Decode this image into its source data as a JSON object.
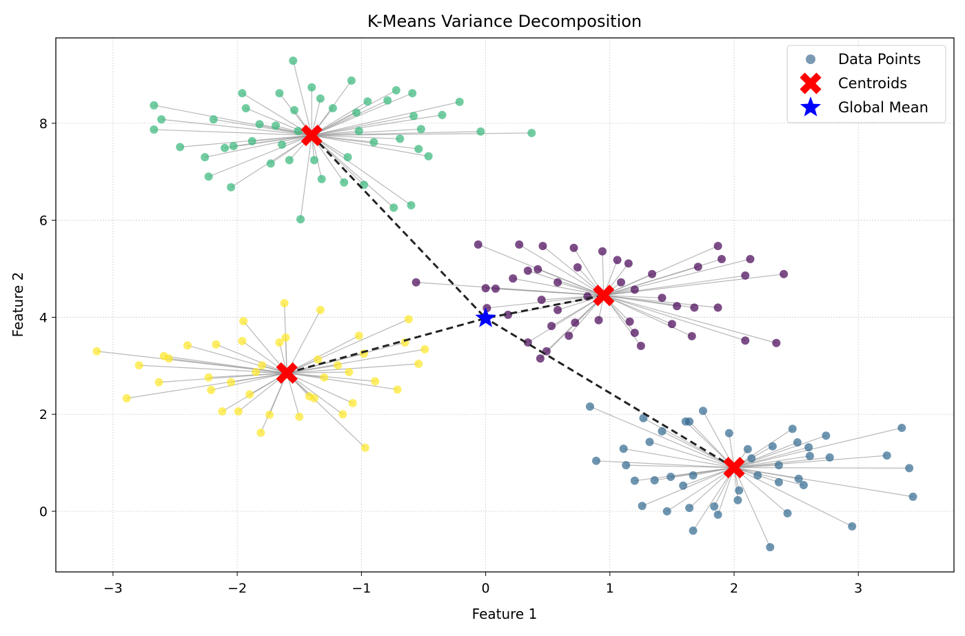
{
  "chart_data": {
    "type": "scatter",
    "title": "K-Means Variance Decomposition",
    "xlabel": "Feature 1",
    "ylabel": "Feature 2",
    "xlim": [
      -3.46,
      3.77
    ],
    "ylim": [
      -1.25,
      9.76
    ],
    "xticks": [
      -3,
      -2,
      -1,
      0,
      1,
      2,
      3
    ],
    "xtick_labels": [
      "−3",
      "−2",
      "−1",
      "0",
      "1",
      "2",
      "3"
    ],
    "yticks": [
      0,
      2,
      4,
      6,
      8
    ],
    "ytick_labels": [
      "0",
      "2",
      "4",
      "6",
      "8"
    ],
    "grid": true,
    "legend_position": "top-right",
    "legend": [
      {
        "label": "Data Points",
        "marker": "circle",
        "color": "#5a7fa0"
      },
      {
        "label": "Centroids",
        "marker": "x",
        "color": "#ff0000"
      },
      {
        "label": "Global Mean",
        "marker": "star",
        "color": "#0000ff"
      }
    ],
    "line_color": "#999999",
    "mean_line_color": "#222222",
    "clusters": [
      {
        "color": "#35b779",
        "centroid": [
          -1.4,
          7.75
        ],
        "points": [
          [
            -1.55,
            9.29
          ],
          [
            -2.67,
            8.37
          ],
          [
            -1.96,
            8.62
          ],
          [
            -1.66,
            8.62
          ],
          [
            -1.4,
            8.74
          ],
          [
            -1.08,
            8.88
          ],
          [
            -1.33,
            8.51
          ],
          [
            -1.93,
            8.31
          ],
          [
            -2.61,
            8.08
          ],
          [
            -2.67,
            7.87
          ],
          [
            -2.19,
            8.08
          ],
          [
            -2.46,
            7.51
          ],
          [
            -2.26,
            7.3
          ],
          [
            -2.23,
            6.9
          ],
          [
            -2.05,
            6.68
          ],
          [
            -2.1,
            7.49
          ],
          [
            -1.73,
            7.17
          ],
          [
            -1.49,
            6.02
          ],
          [
            -1.32,
            6.85
          ],
          [
            -1.14,
            6.78
          ],
          [
            -0.98,
            6.73
          ],
          [
            -0.74,
            6.26
          ],
          [
            -0.6,
            6.31
          ],
          [
            -0.9,
            7.61
          ],
          [
            -0.69,
            7.68
          ],
          [
            -0.54,
            7.47
          ],
          [
            -0.46,
            7.32
          ],
          [
            -0.52,
            7.88
          ],
          [
            -0.58,
            8.15
          ],
          [
            -0.35,
            8.17
          ],
          [
            -0.21,
            8.44
          ],
          [
            -0.04,
            7.83
          ],
          [
            0.37,
            7.8
          ],
          [
            -0.59,
            8.62
          ],
          [
            -0.72,
            8.68
          ],
          [
            -0.79,
            8.47
          ],
          [
            -0.95,
            8.45
          ],
          [
            -1.04,
            8.22
          ],
          [
            -1.23,
            8.31
          ],
          [
            -1.11,
            7.3
          ],
          [
            -1.38,
            7.24
          ],
          [
            -1.58,
            7.24
          ],
          [
            -1.82,
            7.98
          ],
          [
            -1.69,
            7.95
          ],
          [
            -1.88,
            7.63
          ],
          [
            -1.64,
            7.56
          ],
          [
            -1.02,
            7.84
          ],
          [
            -2.03,
            7.53
          ],
          [
            -1.54,
            8.27
          ],
          [
            -1.51,
            7.84
          ]
        ]
      },
      {
        "color": "#440154",
        "centroid": [
          0.95,
          4.45
        ],
        "points": [
          [
            -0.06,
            5.5
          ],
          [
            -0.56,
            4.72
          ],
          [
            0.27,
            5.5
          ],
          [
            0.46,
            5.47
          ],
          [
            0.71,
            5.43
          ],
          [
            0.94,
            5.36
          ],
          [
            1.06,
            5.18
          ],
          [
            1.15,
            5.11
          ],
          [
            1.87,
            5.47
          ],
          [
            1.9,
            5.2
          ],
          [
            2.13,
            5.2
          ],
          [
            1.71,
            5.04
          ],
          [
            2.09,
            4.86
          ],
          [
            2.4,
            4.89
          ],
          [
            1.34,
            4.89
          ],
          [
            1.42,
            4.4
          ],
          [
            1.54,
            4.23
          ],
          [
            1.68,
            4.2
          ],
          [
            1.87,
            4.2
          ],
          [
            1.5,
            3.86
          ],
          [
            1.66,
            3.61
          ],
          [
            2.09,
            3.52
          ],
          [
            2.34,
            3.47
          ],
          [
            1.25,
            3.41
          ],
          [
            1.2,
            3.68
          ],
          [
            1.16,
            3.91
          ],
          [
            0.91,
            3.94
          ],
          [
            0.72,
            3.89
          ],
          [
            0.67,
            3.62
          ],
          [
            0.53,
            3.82
          ],
          [
            0.34,
            3.48
          ],
          [
            0.49,
            3.3
          ],
          [
            0.44,
            3.15
          ],
          [
            0.18,
            4.05
          ],
          [
            0.01,
            4.19
          ],
          [
            0.0,
            4.6
          ],
          [
            0.08,
            4.59
          ],
          [
            0.22,
            4.8
          ],
          [
            0.34,
            4.96
          ],
          [
            0.42,
            4.99
          ],
          [
            0.58,
            4.72
          ],
          [
            0.45,
            4.36
          ],
          [
            0.58,
            4.15
          ],
          [
            0.74,
            5.03
          ],
          [
            1.09,
            4.72
          ],
          [
            1.2,
            4.57
          ],
          [
            0.82,
            4.43
          ]
        ]
      },
      {
        "color": "#fde725",
        "centroid": [
          -1.6,
          2.85
        ],
        "points": [
          [
            -3.13,
            3.3
          ],
          [
            -2.89,
            2.33
          ],
          [
            -2.79,
            3.01
          ],
          [
            -2.63,
            2.66
          ],
          [
            -2.59,
            3.2
          ],
          [
            -2.55,
            3.15
          ],
          [
            -2.4,
            3.42
          ],
          [
            -2.23,
            2.76
          ],
          [
            -2.21,
            2.5
          ],
          [
            -2.17,
            3.44
          ],
          [
            -2.12,
            2.06
          ],
          [
            -1.99,
            2.06
          ],
          [
            -1.96,
            3.51
          ],
          [
            -1.95,
            3.92
          ],
          [
            -1.9,
            2.41
          ],
          [
            -1.81,
            1.62
          ],
          [
            -1.74,
            1.99
          ],
          [
            -1.66,
            3.48
          ],
          [
            -1.62,
            4.29
          ],
          [
            -1.61,
            3.58
          ],
          [
            -1.5,
            1.95
          ],
          [
            -1.38,
            2.33
          ],
          [
            -1.33,
            4.15
          ],
          [
            -1.15,
            2.0
          ],
          [
            -1.07,
            2.23
          ],
          [
            -1.02,
            3.62
          ],
          [
            -0.97,
            1.31
          ],
          [
            -0.89,
            2.68
          ],
          [
            -0.71,
            2.51
          ],
          [
            -0.65,
            3.48
          ],
          [
            -0.62,
            3.96
          ],
          [
            -0.54,
            3.04
          ],
          [
            -0.49,
            3.34
          ],
          [
            -0.98,
            3.25
          ],
          [
            -1.1,
            2.87
          ],
          [
            -1.19,
            3.01
          ],
          [
            -2.05,
            2.66
          ],
          [
            -1.85,
            2.87
          ],
          [
            -1.8,
            3.01
          ],
          [
            -1.35,
            3.13
          ],
          [
            -1.3,
            2.76
          ],
          [
            -1.42,
            2.37
          ]
        ]
      },
      {
        "color": "#31688e",
        "centroid": [
          2.0,
          0.9
        ],
        "points": [
          [
            0.84,
            2.16
          ],
          [
            0.89,
            1.04
          ],
          [
            1.11,
            1.29
          ],
          [
            1.13,
            0.95
          ],
          [
            1.2,
            0.63
          ],
          [
            1.26,
            0.11
          ],
          [
            1.27,
            1.92
          ],
          [
            1.32,
            1.43
          ],
          [
            1.42,
            1.65
          ],
          [
            1.46,
            0.0
          ],
          [
            1.49,
            0.71
          ],
          [
            1.61,
            1.85
          ],
          [
            1.64,
            1.85
          ],
          [
            1.67,
            -0.4
          ],
          [
            1.75,
            2.07
          ],
          [
            1.84,
            0.1
          ],
          [
            1.87,
            -0.07
          ],
          [
            1.96,
            1.61
          ],
          [
            2.03,
            0.23
          ],
          [
            2.11,
            1.28
          ],
          [
            2.29,
            -0.74
          ],
          [
            2.31,
            1.34
          ],
          [
            2.43,
            -0.04
          ],
          [
            2.47,
            1.7
          ],
          [
            2.51,
            1.42
          ],
          [
            2.56,
            0.54
          ],
          [
            2.6,
            1.32
          ],
          [
            2.74,
            1.56
          ],
          [
            2.77,
            1.11
          ],
          [
            2.95,
            -0.31
          ],
          [
            3.23,
            1.15
          ],
          [
            3.35,
            1.72
          ],
          [
            3.41,
            0.89
          ],
          [
            3.44,
            0.3
          ],
          [
            2.36,
            0.6
          ],
          [
            2.52,
            0.67
          ],
          [
            2.19,
            0.74
          ],
          [
            1.59,
            0.53
          ],
          [
            1.64,
            0.07
          ],
          [
            1.67,
            0.74
          ],
          [
            2.04,
            0.43
          ],
          [
            2.14,
            1.09
          ],
          [
            2.36,
            0.95
          ],
          [
            2.61,
            1.14
          ],
          [
            1.36,
            0.64
          ]
        ]
      }
    ],
    "global_mean": [
      0.0,
      3.98
    ]
  }
}
